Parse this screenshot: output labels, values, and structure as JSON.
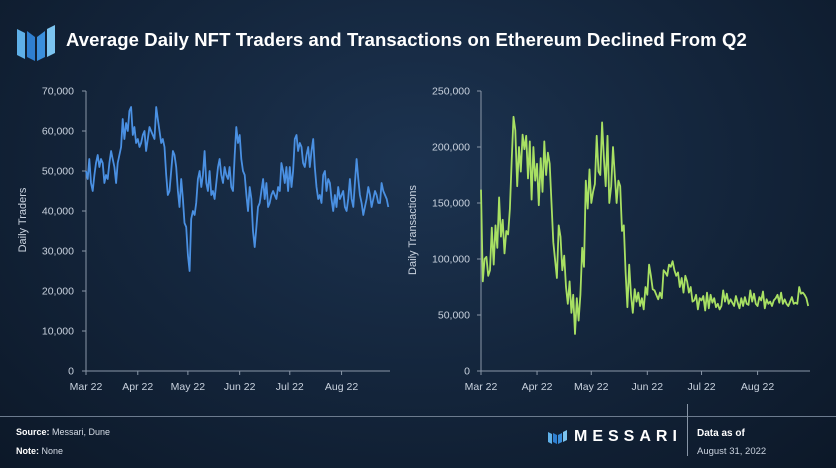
{
  "header": {
    "title": "Average Daily NFT Traders and Transactions on Ethereum Declined From Q2",
    "logo_icon": "messari-logo-icon"
  },
  "footer": {
    "source_label": "Source:",
    "source_value": " Messari, Dune",
    "note_label": "Note:",
    "note_value": " None",
    "brand": "MESSARI",
    "as_of_label": "Data as of",
    "as_of_date": "August 31, 2022"
  },
  "colors": {
    "traders_line": "#4a90e2",
    "transactions_line": "#a8e063",
    "axis": "#8a97a8"
  },
  "chart_data": [
    {
      "type": "line",
      "ylabel": "Daily Traders",
      "ylim": [
        0,
        70000
      ],
      "yticks": [
        0,
        10000,
        20000,
        30000,
        40000,
        50000,
        60000,
        70000
      ],
      "ytick_labels": [
        "0",
        "10,000",
        "20,000",
        "30,000",
        "40,000",
        "50,000",
        "60,000",
        "70,000"
      ],
      "xlim": [
        0,
        182
      ],
      "xticks": [
        0,
        31,
        61,
        92,
        122,
        153
      ],
      "xtick_labels": [
        "Mar 22",
        "Apr 22",
        "May 22",
        "Jun 22",
        "Jul 22",
        "Aug 22"
      ],
      "series": [
        {
          "x": [
            0,
            1,
            2,
            3,
            4,
            5,
            6,
            7,
            8,
            9,
            10,
            11,
            12,
            13,
            14,
            15,
            16,
            17,
            18,
            19,
            20,
            21,
            22,
            23,
            24,
            25,
            26,
            27,
            28,
            29,
            30,
            31,
            32,
            33,
            34,
            35,
            36,
            37,
            38,
            39,
            40,
            41,
            42,
            43,
            44,
            45,
            46,
            47,
            48,
            49,
            50,
            51,
            52,
            53,
            54,
            55,
            56,
            57,
            58,
            59,
            60,
            61,
            62,
            63,
            64,
            65,
            66,
            67,
            68,
            69,
            70,
            71,
            72,
            73,
            74,
            75,
            76,
            77,
            78,
            79,
            80,
            81,
            82,
            83,
            84,
            85,
            86,
            87,
            88,
            89,
            90,
            91,
            92,
            93,
            94,
            95,
            96,
            97,
            98,
            99,
            100,
            101,
            102,
            103,
            104,
            105,
            106,
            107,
            108,
            109,
            110,
            111,
            112,
            113,
            114,
            115,
            116,
            117,
            118,
            119,
            120,
            121,
            122,
            123,
            124,
            125,
            126,
            127,
            128,
            129,
            130,
            131,
            132,
            133,
            134,
            135,
            136,
            137,
            138,
            139,
            140,
            141,
            142,
            143,
            144,
            145,
            146,
            147,
            148,
            149,
            150,
            151,
            152,
            153,
            154,
            155,
            156,
            157,
            158,
            159,
            160,
            161,
            162,
            163,
            164,
            165,
            166,
            167,
            168,
            169,
            170,
            171,
            172,
            173,
            174,
            175,
            176,
            177,
            178,
            179,
            180,
            181
          ],
          "y": [
            50000,
            48000,
            53000,
            47000,
            45000,
            49000,
            52000,
            54000,
            51000,
            53000,
            52000,
            47000,
            49000,
            48000,
            52000,
            55000,
            53000,
            51000,
            47000,
            52000,
            54000,
            56000,
            63000,
            58000,
            62000,
            60000,
            65000,
            66000,
            59000,
            61000,
            57000,
            58000,
            56000,
            57000,
            59000,
            60000,
            55000,
            58000,
            61000,
            60000,
            59000,
            58000,
            66000,
            63000,
            60000,
            57000,
            58000,
            56000,
            49000,
            44000,
            45000,
            50000,
            55000,
            54000,
            51000,
            45000,
            41000,
            48000,
            43000,
            37000,
            36000,
            29000,
            25000,
            38000,
            40000,
            39000,
            42000,
            48000,
            50000,
            46000,
            49000,
            55000,
            47000,
            45000,
            50000,
            44000,
            45000,
            43000,
            47000,
            51000,
            53000,
            49000,
            47000,
            51000,
            49000,
            48000,
            51000,
            46000,
            45000,
            54000,
            61000,
            57000,
            59000,
            53000,
            50000,
            49000,
            44000,
            40000,
            46000,
            43000,
            35000,
            31000,
            36000,
            41000,
            42000,
            45000,
            48000,
            43000,
            47000,
            41000,
            42000,
            44000,
            45000,
            44000,
            43000,
            46000,
            45000,
            52000,
            50000,
            47000,
            51000,
            45000,
            51000,
            46000,
            50000,
            58000,
            59000,
            55000,
            57000,
            56000,
            52000,
            51000,
            54000,
            56000,
            51000,
            55000,
            58000,
            51000,
            46000,
            43000,
            44000,
            42000,
            49000,
            50000,
            45000,
            48000,
            47000,
            43000,
            40000,
            44000,
            41000,
            46000,
            43000,
            44000,
            45000,
            41000,
            40000,
            43000,
            48000,
            43000,
            41000,
            47000,
            53000,
            48000,
            44000,
            42000,
            39000,
            41000,
            43000,
            46000,
            44000,
            41000,
            43000,
            45000,
            44000,
            42000,
            42000,
            47000,
            45000,
            44000,
            43000,
            41000
          ],
          "name": ""
        }
      ]
    },
    {
      "type": "line",
      "ylabel": "Daily Transactions",
      "ylim": [
        0,
        250000
      ],
      "yticks": [
        0,
        50000,
        100000,
        150000,
        200000,
        250000
      ],
      "ytick_labels": [
        "0",
        "50,000",
        "100,000",
        "150,000",
        "200,000",
        "250,000"
      ],
      "xlim": [
        0,
        182
      ],
      "xticks": [
        0,
        31,
        61,
        92,
        122,
        153
      ],
      "xtick_labels": [
        "Mar 22",
        "Apr 22",
        "May 22",
        "Jun 22",
        "Jul 22",
        "Aug 22"
      ],
      "series": [
        {
          "x": [
            0,
            1,
            2,
            3,
            4,
            5,
            6,
            7,
            8,
            9,
            10,
            11,
            12,
            13,
            14,
            15,
            16,
            17,
            18,
            19,
            20,
            21,
            22,
            23,
            24,
            25,
            26,
            27,
            28,
            29,
            30,
            31,
            32,
            33,
            34,
            35,
            36,
            37,
            38,
            39,
            40,
            41,
            42,
            43,
            44,
            45,
            46,
            47,
            48,
            49,
            50,
            51,
            52,
            53,
            54,
            55,
            56,
            57,
            58,
            59,
            60,
            61,
            62,
            63,
            64,
            65,
            66,
            67,
            68,
            69,
            70,
            71,
            72,
            73,
            74,
            75,
            76,
            77,
            78,
            79,
            80,
            81,
            82,
            83,
            84,
            85,
            86,
            87,
            88,
            89,
            90,
            91,
            92,
            93,
            94,
            95,
            96,
            97,
            98,
            99,
            100,
            101,
            102,
            103,
            104,
            105,
            106,
            107,
            108,
            109,
            110,
            111,
            112,
            113,
            114,
            115,
            116,
            117,
            118,
            119,
            120,
            121,
            122,
            123,
            124,
            125,
            126,
            127,
            128,
            129,
            130,
            131,
            132,
            133,
            134,
            135,
            136,
            137,
            138,
            139,
            140,
            141,
            142,
            143,
            144,
            145,
            146,
            147,
            148,
            149,
            150,
            151,
            152,
            153,
            154,
            155,
            156,
            157,
            158,
            159,
            160,
            161,
            162,
            163,
            164,
            165,
            166,
            167,
            168,
            169,
            170,
            171,
            172,
            173,
            174,
            175,
            176,
            177,
            178,
            179,
            180,
            181
          ],
          "y": [
            162000,
            80000,
            100000,
            102000,
            85000,
            90000,
            128000,
            95000,
            130000,
            110000,
            155000,
            120000,
            135000,
            105000,
            125000,
            122000,
            145000,
            188000,
            227000,
            215000,
            165000,
            200000,
            178000,
            211000,
            198000,
            210000,
            172000,
            205000,
            153000,
            200000,
            170000,
            185000,
            148000,
            190000,
            160000,
            205000,
            175000,
            195000,
            185000,
            150000,
            115000,
            99000,
            83000,
            130000,
            120000,
            90000,
            103000,
            75000,
            60000,
            80000,
            52000,
            68000,
            33000,
            65000,
            45000,
            68000,
            110000,
            93000,
            170000,
            145000,
            180000,
            150000,
            160000,
            167000,
            210000,
            178000,
            175000,
            222000,
            190000,
            165000,
            210000,
            150000,
            165000,
            200000,
            175000,
            150000,
            170000,
            165000,
            125000,
            130000,
            88000,
            57000,
            95000,
            68000,
            52000,
            73000,
            62000,
            70000,
            58000,
            65000,
            55000,
            75000,
            68000,
            95000,
            85000,
            73000,
            72000,
            68000,
            64000,
            70000,
            65000,
            90000,
            88000,
            85000,
            95000,
            93000,
            98000,
            90000,
            85000,
            88000,
            75000,
            83000,
            70000,
            85000,
            80000,
            70000,
            75000,
            62000,
            63000,
            68000,
            55000,
            65000,
            63000,
            67000,
            54000,
            70000,
            56000,
            68000,
            61000,
            65000,
            57000,
            60000,
            55000,
            58000,
            72000,
            62000,
            69000,
            60000,
            64000,
            61000,
            58000,
            67000,
            61000,
            56000,
            65000,
            58000,
            66000,
            60000,
            59000,
            72000,
            62000,
            69000,
            60000,
            58000,
            66000,
            63000,
            71000,
            56000,
            64000,
            60000,
            62000,
            58000,
            63000,
            65000,
            68000,
            61000,
            70000,
            60000,
            64000,
            60000,
            58000,
            62000,
            66000,
            60000,
            61000,
            60000,
            75000,
            69000,
            70000,
            68000,
            65000,
            58000
          ],
          "name": ""
        }
      ]
    }
  ]
}
